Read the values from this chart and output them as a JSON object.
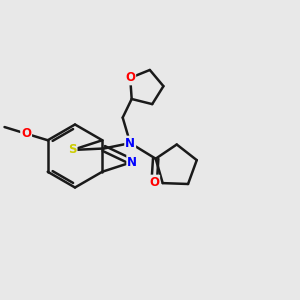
{
  "background_color": "#e8e8e8",
  "bond_color": "#1a1a1a",
  "bond_width": 1.8,
  "atom_colors": {
    "N": "#0000ff",
    "O": "#ff0000",
    "S": "#cccc00",
    "C": "#1a1a1a"
  },
  "font_size_atom": 8.5,
  "figsize": [
    3.0,
    3.0
  ],
  "dpi": 100
}
